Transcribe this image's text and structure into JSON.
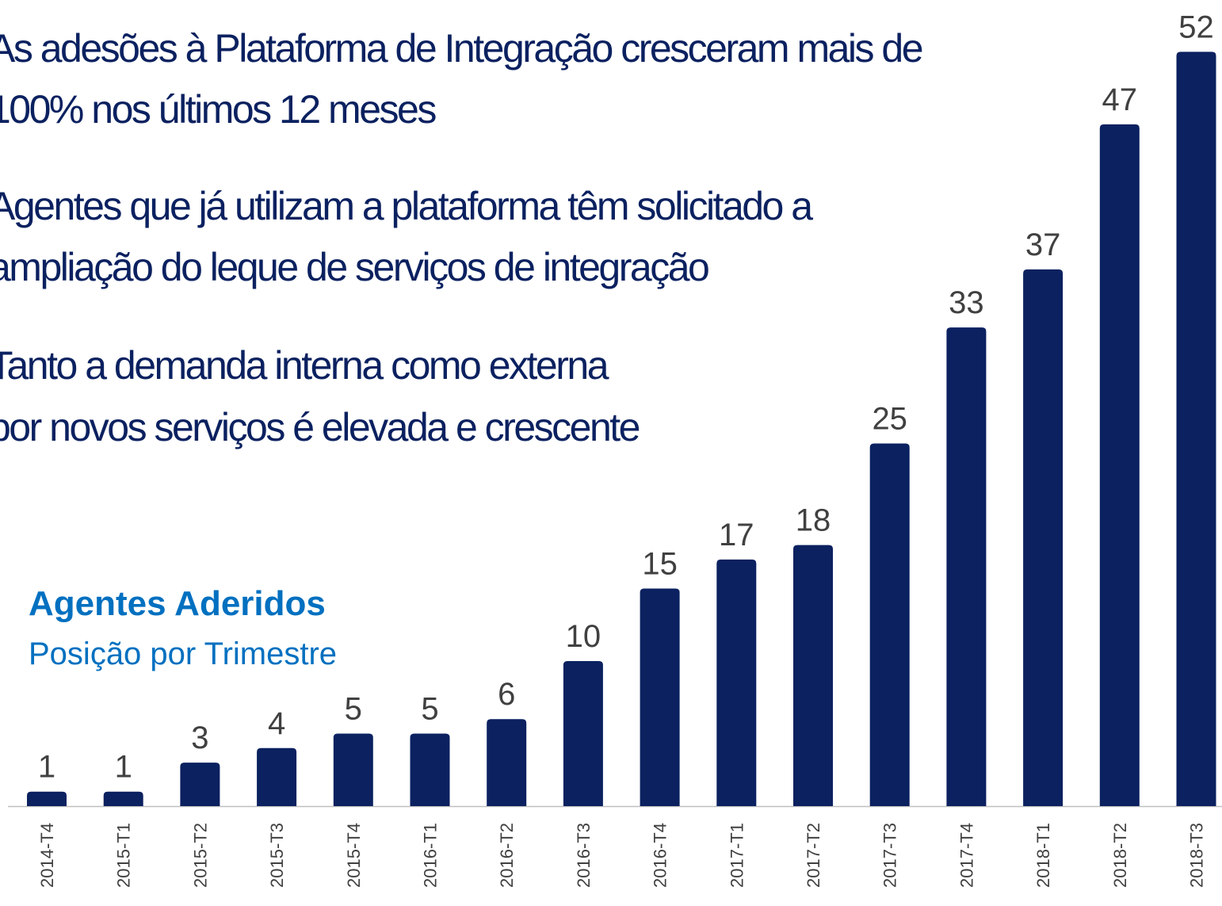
{
  "bullets": [
    "As adesões à Plataforma de Integração cresceram mais de",
    "100% nos últimos 12 meses",
    "Agentes que já utilizam a plataforma têm solicitado a",
    "ampliação do leque de serviços de integração",
    "Tanto a demanda interna como externa",
    "por novos serviços é elevada e crescente"
  ],
  "chart_data": {
    "type": "bar",
    "title": "Agentes Aderidos",
    "subtitle": "Posição por Trimestre",
    "categories": [
      "2014-T4",
      "2015-T1",
      "2015-T2",
      "2015-T3",
      "2015-T4",
      "2016-T1",
      "2016-T2",
      "2016-T3",
      "2016-T4",
      "2017-T1",
      "2017-T2",
      "2017-T3",
      "2017-T4",
      "2018-T1",
      "2018-T2",
      "2018-T3"
    ],
    "values": [
      1,
      1,
      3,
      4,
      5,
      5,
      6,
      10,
      15,
      17,
      18,
      25,
      33,
      37,
      47,
      52
    ],
    "color": "#0b2160"
  }
}
